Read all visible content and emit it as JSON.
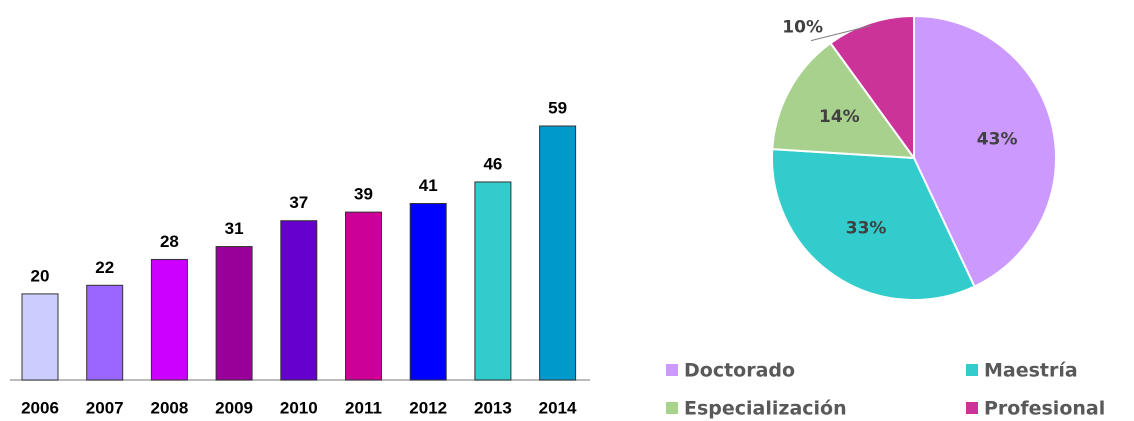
{
  "chart_data": [
    {
      "type": "bar",
      "categories": [
        "2006",
        "2007",
        "2008",
        "2009",
        "2010",
        "2011",
        "2012",
        "2013",
        "2014"
      ],
      "values": [
        20,
        22,
        28,
        31,
        37,
        39,
        41,
        46,
        59
      ],
      "colors": [
        "#ccccff",
        "#9966ff",
        "#cc00ff",
        "#990099",
        "#6600cc",
        "#cc0099",
        "#0000ff",
        "#33cccc",
        "#0099cc"
      ]
    },
    {
      "type": "pie",
      "categories": [
        "Doctorado",
        "Maestría",
        "Especialización",
        "Profesional"
      ],
      "values": [
        43,
        33,
        14,
        10
      ],
      "value_labels": [
        "43%",
        "33%",
        "14%",
        "10%"
      ],
      "colors": [
        "#cc99ff",
        "#33cccc",
        "#a9d18e",
        "#cc3399"
      ],
      "legend": "bottom"
    }
  ]
}
